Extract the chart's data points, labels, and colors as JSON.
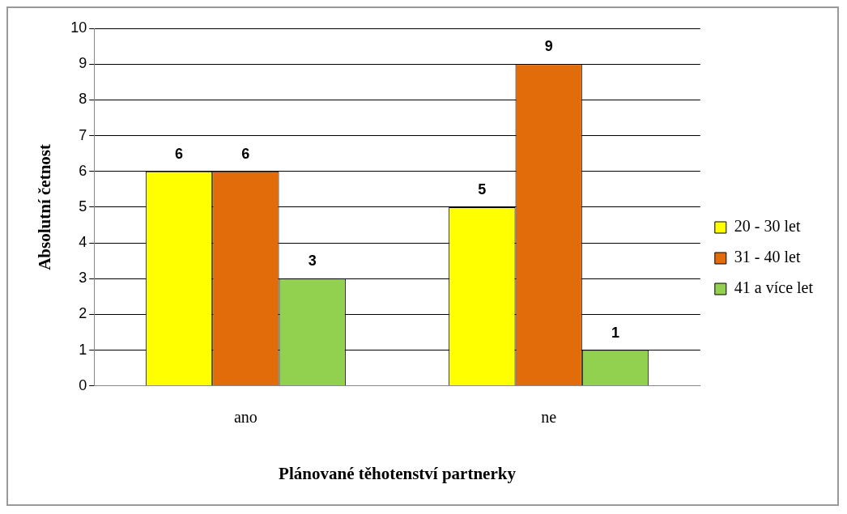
{
  "chart_data": {
    "type": "bar",
    "xlabel": "Plánované těhotenství partnerky",
    "ylabel": "Absolutní četnost",
    "categories": [
      "ano",
      "ne"
    ],
    "series": [
      {
        "name": "20 - 30 let",
        "color": "#ffff00",
        "values": [
          6,
          5
        ]
      },
      {
        "name": "31 - 40 let",
        "color": "#e36c0a",
        "values": [
          6,
          9
        ]
      },
      {
        "name": "41 a více let",
        "color": "#92d050",
        "values": [
          3,
          1
        ]
      }
    ],
    "ylim": [
      0,
      10
    ],
    "yticks": [
      0,
      1,
      2,
      3,
      4,
      5,
      6,
      7,
      8,
      9,
      10
    ],
    "grid": "y",
    "legend": "right",
    "data_labels": true
  }
}
